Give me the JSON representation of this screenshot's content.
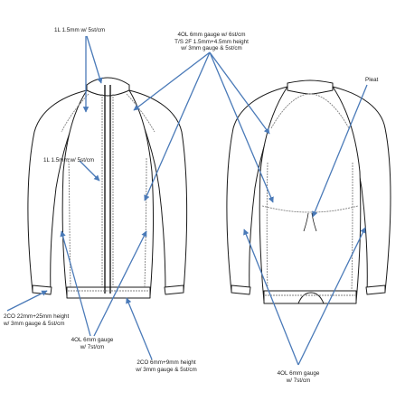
{
  "labels": {
    "zip_stitch": "1L 1.5mm w/ 5st/cm",
    "raglan_line1": "4OL 6mm gauge w/ 6st/cm",
    "raglan_line2": "T/S  2F 1.5mm+4.5mm height",
    "raglan_line3": "w/ 3mm gauge & 5st/cm",
    "pleat": "Pleat",
    "placket_stitch": "1L 1.5mm w/ 5st/cm",
    "cuff_line1": "2CO 22mm+25mm height",
    "cuff_line2": "w/ 3mm gauge & 5st/cm",
    "side_line1": "4OL 6mm gauge",
    "side_line2": "w/ 7st/cm",
    "hem_line1": "2CO 6mm+9mm height",
    "hem_line2": "w/ 3mm gauge & 5st/cm",
    "back_line1": "4OL 6mm gauge",
    "back_line2": "w/ 7st/cm"
  },
  "colors": {
    "garment_outline": "#1a1a1a",
    "seam_stitch": "#808080",
    "callout_arrow": "#4a7ab8"
  }
}
